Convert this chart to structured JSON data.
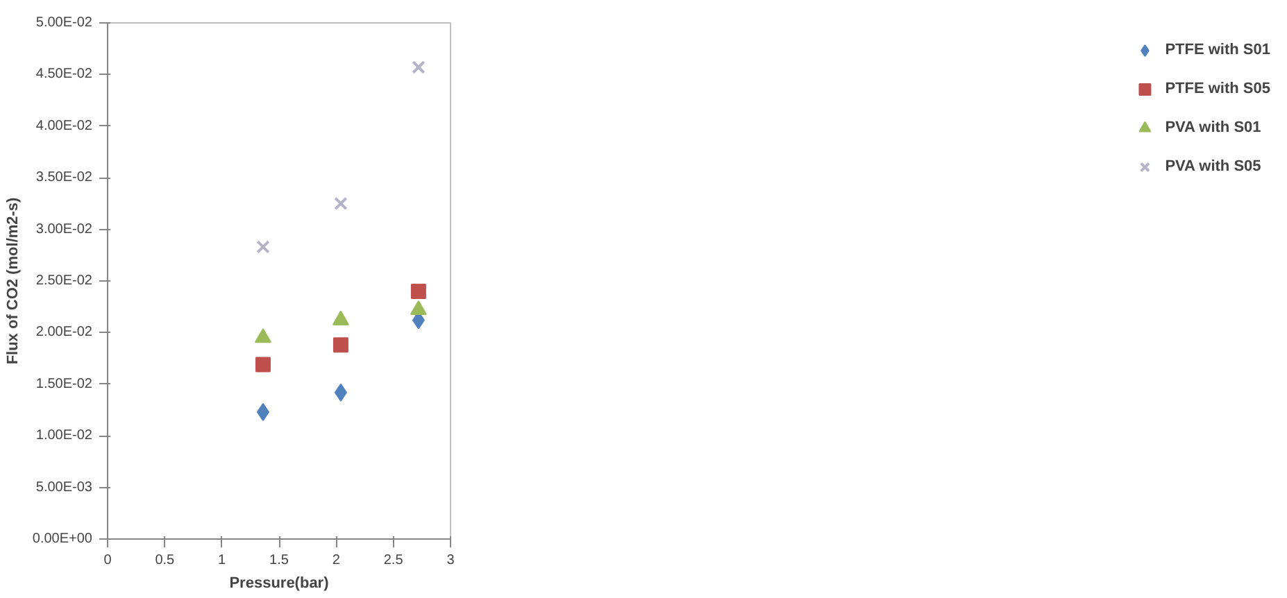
{
  "chart_data": {
    "type": "scatter",
    "xlabel": "Pressure(bar)",
    "ylabel": "Flux of CO2 (mol/m2-s)",
    "x": [
      1.36,
      2.04,
      2.72
    ],
    "series": [
      {
        "name": "PTFE with S01",
        "color": "#4f81bd",
        "marker": "diamond",
        "values": [
          0.0123,
          0.0142,
          0.0212
        ]
      },
      {
        "name": "PTFE with S05",
        "color": "#c0504d",
        "marker": "square",
        "values": [
          0.0169,
          0.0188,
          0.024
        ]
      },
      {
        "name": "PVA with S01",
        "color": "#9bbb59",
        "marker": "triangle",
        "values": [
          0.0195,
          0.0212,
          0.0222
        ]
      },
      {
        "name": "PVA with S05",
        "color": "#b4b4c8",
        "marker": "cross",
        "values": [
          0.0283,
          0.0325,
          0.0457
        ]
      }
    ],
    "xlim": [
      0,
      3
    ],
    "xticks": [
      0,
      0.5,
      1,
      1.5,
      2,
      2.5,
      3
    ],
    "ylim": [
      0,
      0.05
    ],
    "yticks": [
      {
        "value": 0,
        "label": "0.00E+00"
      },
      {
        "value": 0.005,
        "label": "5.00E-03"
      },
      {
        "value": 0.01,
        "label": "1.00E-02"
      },
      {
        "value": 0.015,
        "label": "1.50E-02"
      },
      {
        "value": 0.02,
        "label": "2.00E-02"
      },
      {
        "value": 0.025,
        "label": "2.50E-02"
      },
      {
        "value": 0.03,
        "label": "3.00E-02"
      },
      {
        "value": 0.035,
        "label": "3.50E-02"
      },
      {
        "value": 0.04,
        "label": "4.00E-02"
      },
      {
        "value": 0.045,
        "label": "4.50E-02"
      },
      {
        "value": 0.05,
        "label": "5.00E-02"
      }
    ],
    "grid": false,
    "legend": "right"
  }
}
